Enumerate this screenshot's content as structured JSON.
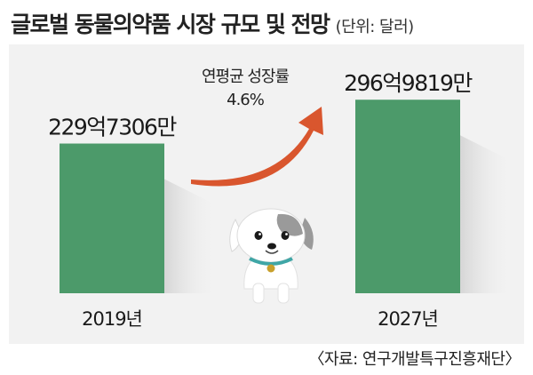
{
  "header": {
    "title": "글로벌 동물의약품 시장 규모 및 전망",
    "unit": "(단위: 달러)"
  },
  "chart_data": {
    "type": "bar",
    "categories": [
      "2019년",
      "2027년"
    ],
    "values": [
      22973060000,
      29698190000
    ],
    "value_labels": [
      "229억7306만",
      "296억9819만"
    ],
    "ylim": [
      0,
      30000000000
    ],
    "grid": false,
    "annotation": {
      "label": "연평균 성장률",
      "value": "4.6%"
    }
  },
  "colors": {
    "bar": "#4c9a6a",
    "arrow": "#d9562e",
    "panel": "#f2f2f2",
    "dog_collar": "#3fa6a6",
    "dog_tag": "#c8a02c"
  },
  "illustration": {
    "icon": "puppy-icon"
  },
  "source": "〈자료: 연구개발특구진흥재단〉"
}
